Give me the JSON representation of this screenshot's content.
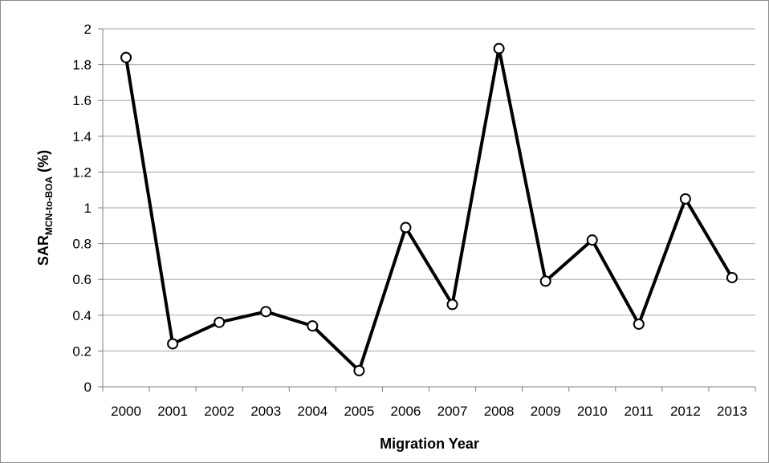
{
  "chart_data": {
    "type": "line",
    "categories": [
      "2000",
      "2001",
      "2002",
      "2003",
      "2004",
      "2005",
      "2006",
      "2007",
      "2008",
      "2009",
      "2010",
      "2011",
      "2012",
      "2013"
    ],
    "values": [
      1.84,
      0.24,
      0.36,
      0.42,
      0.34,
      0.09,
      0.89,
      0.46,
      1.89,
      0.59,
      0.82,
      0.35,
      1.05,
      0.61
    ],
    "xlabel": "Migration Year",
    "ylabel_main": "SAR",
    "ylabel_sub": "MCN-to-BOA",
    "ylabel_suffix": " (%)",
    "ylim": [
      0,
      2
    ],
    "yticks": [
      "0",
      "0.2",
      "0.4",
      "0.6",
      "0.8",
      "1",
      "1.2",
      "1.4",
      "1.6",
      "1.8",
      "2"
    ],
    "grid": "horizontal",
    "line_color": "#000000",
    "marker_fill": "#ffffff",
    "gridline_color": "#a6a6a6"
  }
}
